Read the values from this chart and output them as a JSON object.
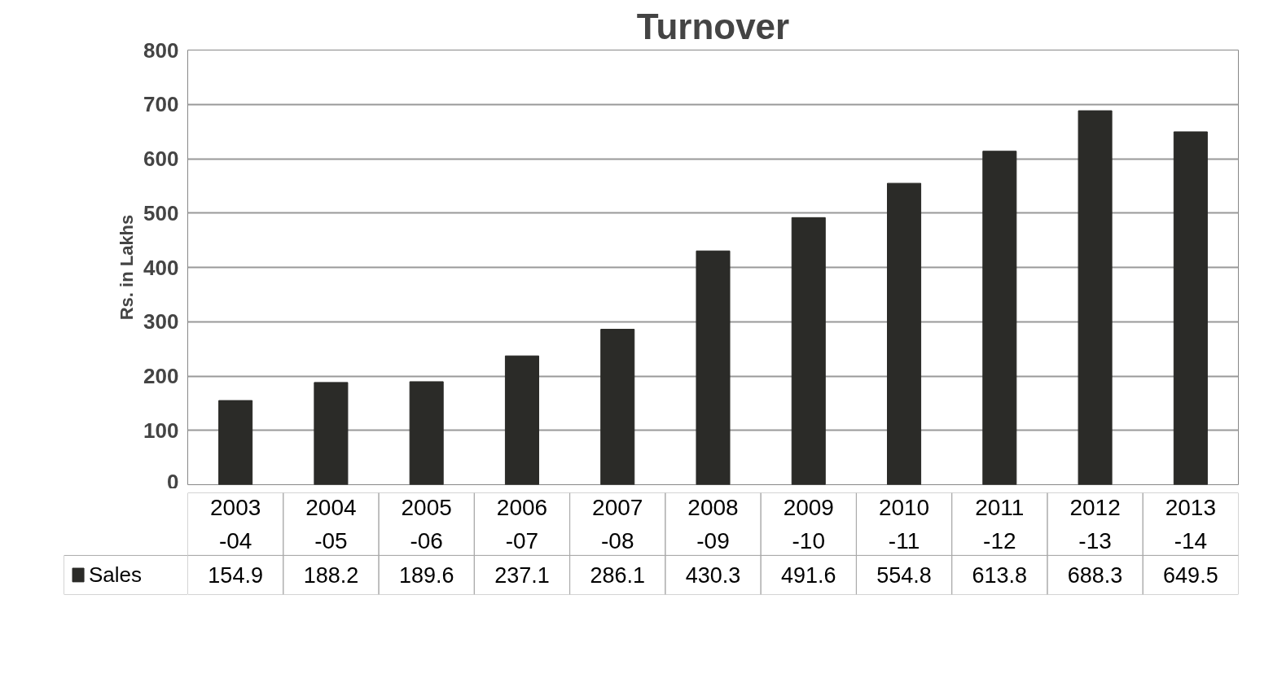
{
  "chart_data": {
    "type": "bar",
    "title": "Turnover",
    "ylabel": "Rs. in Lakhs",
    "categories": [
      "2003\n-04",
      "2004\n-05",
      "2005\n-06",
      "2006\n-07",
      "2007\n-08",
      "2008\n-09",
      "2009\n-10",
      "2010\n-11",
      "2011\n-12",
      "2012\n-13",
      "2013\n-14"
    ],
    "series": [
      {
        "name": "Sales",
        "color": "#2b2b28",
        "values": [
          154.9,
          188.2,
          189.6,
          237.1,
          286.1,
          430.3,
          491.6,
          554.8,
          613.8,
          688.3,
          649.5
        ]
      }
    ],
    "ylim": [
      0,
      800
    ],
    "yticks": [
      0,
      100,
      200,
      300,
      400,
      500,
      600,
      700,
      800
    ],
    "grid": "y",
    "legend": "bottom",
    "tick_labels": "y",
    "data_labels": true
  }
}
